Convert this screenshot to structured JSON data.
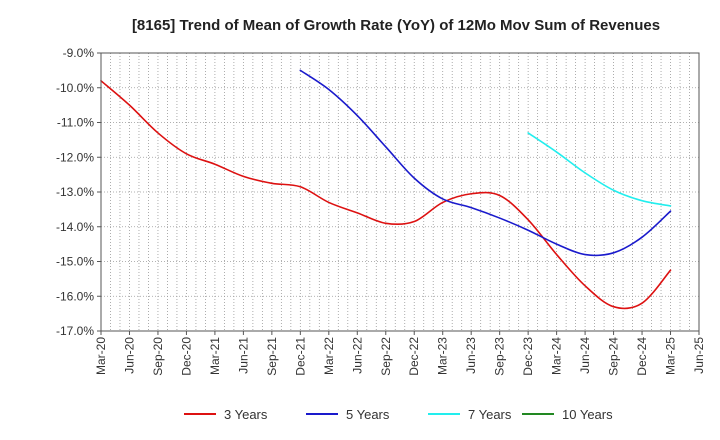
{
  "chart_data": {
    "type": "line",
    "title": "[8165]  Trend of Mean of Growth Rate (YoY) of 12Mo Mov Sum of Revenues",
    "xlabel": "",
    "ylabel": "",
    "ylim": [
      -17.0,
      -9.0
    ],
    "yticks": [
      -9.0,
      -10.0,
      -11.0,
      -12.0,
      -13.0,
      -14.0,
      -15.0,
      -16.0,
      -17.0
    ],
    "ytick_labels": [
      "-9.0%",
      "-10.0%",
      "-11.0%",
      "-12.0%",
      "-13.0%",
      "-14.0%",
      "-15.0%",
      "-16.0%",
      "-17.0%"
    ],
    "x_start": "Mar-20",
    "x_months": 63,
    "xtick_labels": [
      "Mar-20",
      "Jun-20",
      "Sep-20",
      "Dec-20",
      "Mar-21",
      "Jun-21",
      "Sep-21",
      "Dec-21",
      "Mar-22",
      "Jun-22",
      "Sep-22",
      "Dec-22",
      "Mar-23",
      "Jun-23",
      "Sep-23",
      "Dec-23",
      "Mar-24",
      "Jun-24",
      "Sep-24",
      "Dec-24",
      "Mar-25",
      "Jun-25"
    ],
    "grid": true,
    "legend_position": "bottom",
    "series": [
      {
        "name": "3 Years",
        "color": "#dd1111",
        "points": [
          [
            0,
            -9.8
          ],
          [
            3,
            -10.5
          ],
          [
            6,
            -11.3
          ],
          [
            9,
            -11.9
          ],
          [
            12,
            -12.2
          ],
          [
            15,
            -12.55
          ],
          [
            18,
            -12.75
          ],
          [
            21,
            -12.85
          ],
          [
            24,
            -13.3
          ],
          [
            27,
            -13.6
          ],
          [
            30,
            -13.9
          ],
          [
            33,
            -13.85
          ],
          [
            36,
            -13.3
          ],
          [
            39,
            -13.05
          ],
          [
            42,
            -13.1
          ],
          [
            45,
            -13.8
          ],
          [
            48,
            -14.8
          ],
          [
            51,
            -15.7
          ],
          [
            54,
            -16.3
          ],
          [
            57,
            -16.2
          ],
          [
            60,
            -15.25
          ]
        ]
      },
      {
        "name": "5 Years",
        "color": "#1a1acc",
        "points": [
          [
            21,
            -9.5
          ],
          [
            24,
            -10.05
          ],
          [
            27,
            -10.8
          ],
          [
            30,
            -11.7
          ],
          [
            33,
            -12.6
          ],
          [
            36,
            -13.2
          ],
          [
            39,
            -13.45
          ],
          [
            42,
            -13.75
          ],
          [
            45,
            -14.1
          ],
          [
            48,
            -14.5
          ],
          [
            51,
            -14.8
          ],
          [
            54,
            -14.75
          ],
          [
            57,
            -14.3
          ],
          [
            60,
            -13.55
          ]
        ]
      },
      {
        "name": "7 Years",
        "color": "#22eeee",
        "points": [
          [
            45,
            -11.3
          ],
          [
            48,
            -11.85
          ],
          [
            51,
            -12.45
          ],
          [
            54,
            -12.95
          ],
          [
            57,
            -13.25
          ],
          [
            60,
            -13.4
          ]
        ]
      },
      {
        "name": "10 Years",
        "color": "#228822",
        "points": []
      }
    ]
  }
}
